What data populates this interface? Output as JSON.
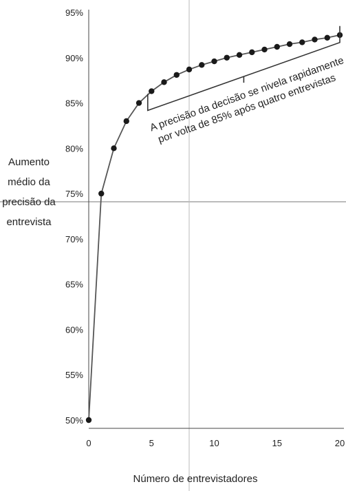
{
  "chart_data": {
    "type": "line",
    "title": "",
    "xlabel": "Número de entrevistadores",
    "ylabel_lines": [
      "Aumento",
      "médio da",
      "precisão da",
      "entrevista"
    ],
    "x": [
      0,
      1,
      2,
      3,
      4,
      5,
      6,
      7,
      8,
      9,
      10,
      11,
      12,
      13,
      14,
      15,
      16,
      17,
      18,
      19,
      20
    ],
    "values": [
      50,
      75,
      80,
      83,
      85,
      86.3,
      87.3,
      88.1,
      88.7,
      89.2,
      89.6,
      90,
      90.3,
      90.6,
      90.9,
      91.2,
      91.5,
      91.7,
      92,
      92.2,
      92.5
    ],
    "xlim": [
      0,
      20
    ],
    "ylim": [
      50,
      95
    ],
    "x_ticks": [
      0,
      5,
      10,
      15,
      20
    ],
    "x_tick_labels": [
      "0",
      "5",
      "10",
      "15",
      "20"
    ],
    "y_ticks": [
      50,
      55,
      60,
      65,
      70,
      75,
      80,
      85,
      90,
      95
    ],
    "y_tick_labels": [
      "50%",
      "55%",
      "60%",
      "65%",
      "70%",
      "75%",
      "80%",
      "85%",
      "90%",
      "95%"
    ],
    "reference_x": 8,
    "annotation": {
      "lines": [
        "A precisão da decisão se nivela rapidamente",
        "por volta de 85% após quatro entrevistas"
      ],
      "bracket_x": [
        4.7,
        20
      ],
      "bracket_y": [
        86,
        93.5
      ]
    },
    "colors": {
      "line": "#555555",
      "marker": "#1a1a1a",
      "ref_line": "#bbbbbb",
      "axis": "#444444"
    }
  }
}
